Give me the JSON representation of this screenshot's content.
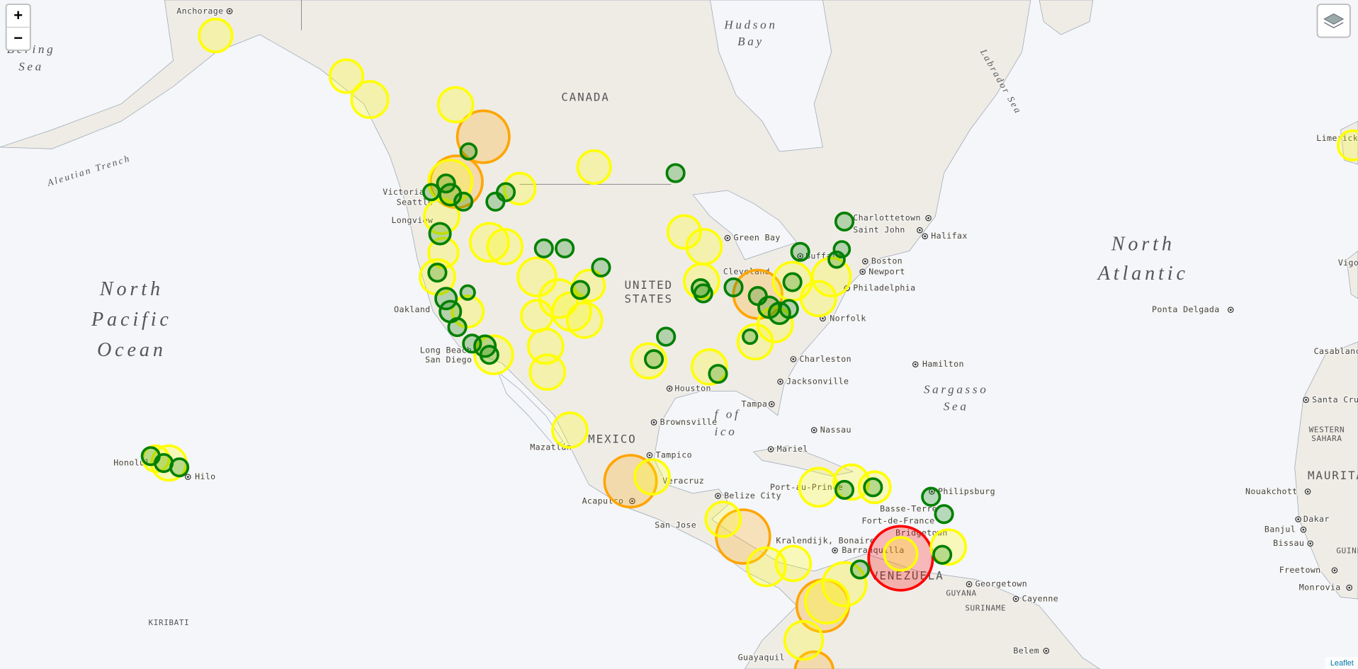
{
  "controls": {
    "zoom_in": "+",
    "zoom_out": "−"
  },
  "attribution": "Leaflet",
  "places": [
    "Anchorage",
    "Victoria",
    "Seattle",
    "Longview",
    "Oakland",
    "Long Beach",
    "San Diego",
    "Green Bay",
    "Buffalo",
    "Cleveland",
    "Charlottetown",
    "Saint John",
    "Halifax",
    "Boston",
    "Newport",
    "Philadelphia",
    "Norfolk",
    "Charleston",
    "Jacksonville",
    "Houston",
    "Brownsville",
    "Tampa",
    "Nassau",
    "Mariel",
    "Port-au-Prince",
    "Philipsburg",
    "Basse-Terre",
    "Fort-de-France",
    "Bridgetown",
    "Kralendijk, Bonaire",
    "Barranquilla",
    "Belize City",
    "San Jose",
    "Tampico",
    "Veracruz",
    "Acapulco",
    "Mazatlán",
    "Honolulu",
    "Hilo",
    "Hamilton",
    "Ponta Delgada",
    "Limerick",
    "Vigo",
    "Casablanca",
    "Santa Cruz",
    "Nouakchott",
    "Dakar",
    "Banjul",
    "Bissau",
    "Freetown",
    "Monrovia",
    "Georgetown",
    "Cayenne",
    "Guayaquil",
    "Belem"
  ],
  "countries": [
    "CANADA",
    "UNITED",
    "STATES",
    "MEXICO",
    "VENEZUELA",
    "GUYANA",
    "SURINAME",
    "KIRIBATI",
    "MAURITANIA",
    "WESTERN",
    "SAHARA",
    "GUINEA"
  ],
  "water": [
    "Hudson",
    "Bay",
    "Bering",
    "Sea",
    "North",
    "Pacific",
    "Ocean",
    "North",
    "Atlantic",
    "Sargasso",
    "Sea",
    "Labrador Sea",
    "Aleutian Trench",
    "f of",
    "ico"
  ]
}
